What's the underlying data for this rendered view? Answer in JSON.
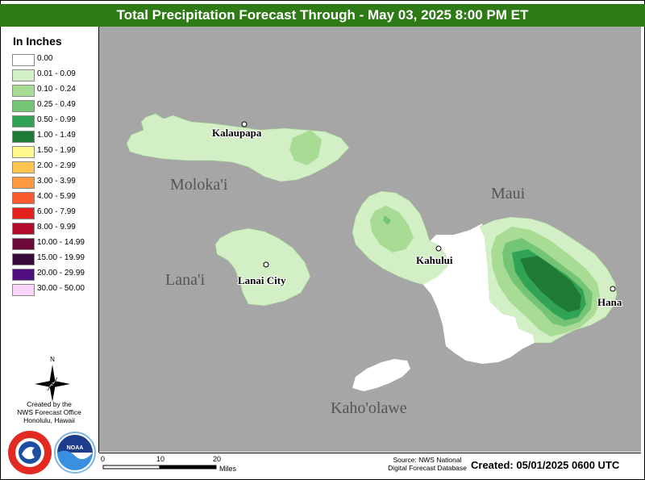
{
  "title": "Total Precipitation Forecast Through - May 03, 2025 8:00 PM ET",
  "legend": {
    "title": "In Inches",
    "items": [
      {
        "label": "0.00",
        "color": "#ffffff"
      },
      {
        "label": "0.01 - 0.09",
        "color": "#d3efc6"
      },
      {
        "label": "0.10 - 0.24",
        "color": "#a8dc94"
      },
      {
        "label": "0.25 - 0.49",
        "color": "#74c476"
      },
      {
        "label": "0.50 - 0.99",
        "color": "#31a354"
      },
      {
        "label": "1.00 - 1.49",
        "color": "#1f7a36"
      },
      {
        "label": "1.50 - 1.99",
        "color": "#fff98f"
      },
      {
        "label": "2.00 - 2.99",
        "color": "#fec44f"
      },
      {
        "label": "3.00 - 3.99",
        "color": "#fd9a3f"
      },
      {
        "label": "4.00 - 5.99",
        "color": "#fb5a2e"
      },
      {
        "label": "6.00 - 7.99",
        "color": "#e3201b"
      },
      {
        "label": "8.00 - 9.99",
        "color": "#b30c2c"
      },
      {
        "label": "10.00 - 14.99",
        "color": "#6e0a3a"
      },
      {
        "label": "15.00 - 19.99",
        "color": "#3a0a3a"
      },
      {
        "label": "20.00 - 29.99",
        "color": "#4f0f7f"
      },
      {
        "label": "30.00 - 50.00",
        "color": "#fcd4fa"
      }
    ]
  },
  "north_label": "N",
  "credit": [
    "Created by the",
    "NWS Forecast Office",
    "Honolulu, Hawaii"
  ],
  "logos": {
    "nws_text": "NATIONAL WEATHER SERVICE",
    "noaa_text": "NOAA"
  },
  "scale": {
    "ticks": [
      "0",
      "10",
      "20"
    ],
    "unit": "Miles"
  },
  "source": [
    "Source: NWS National",
    "Digital Forecast Database"
  ],
  "created": "Created: 05/01/2025 0600 UTC",
  "islands": [
    "Moloka'i",
    "Lana'i",
    "Maui",
    "Kaho'olawe"
  ],
  "cities": [
    "Kalaupapa",
    "Lanai City",
    "Kahului",
    "Hana"
  ],
  "colors": {
    "map_background": "#a6a6a6",
    "title_bar": "#2e7a17"
  }
}
